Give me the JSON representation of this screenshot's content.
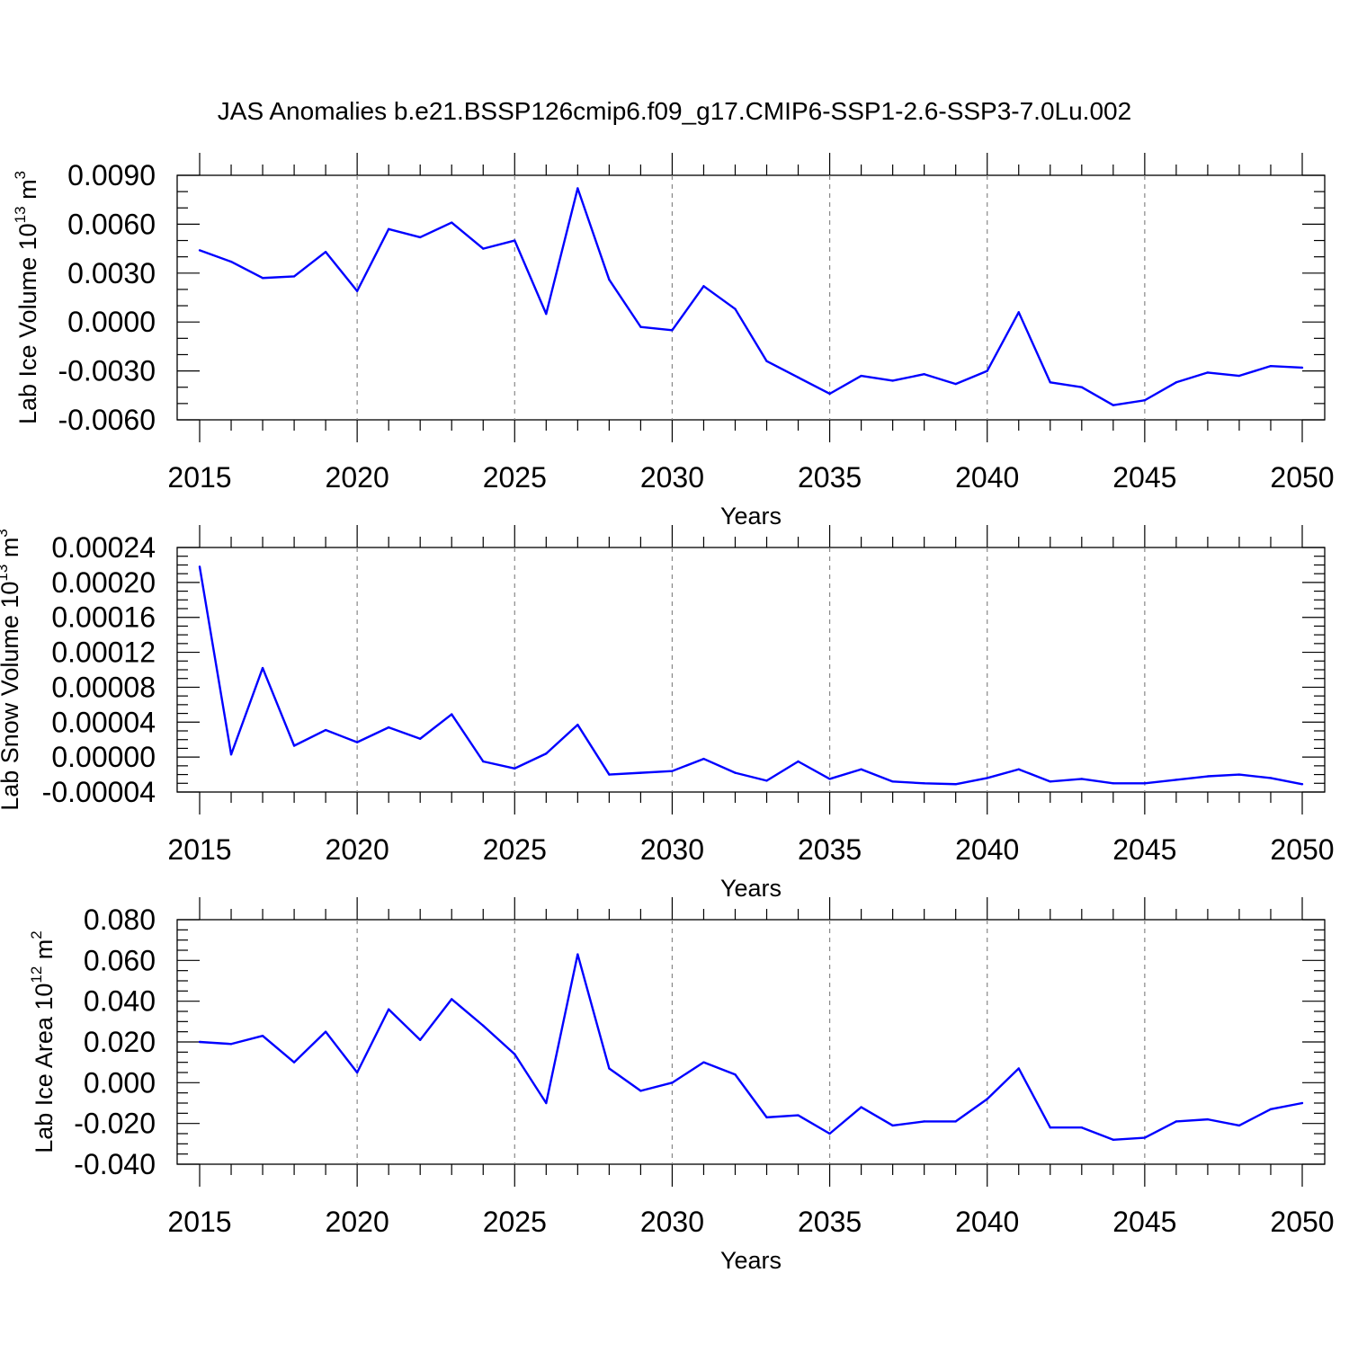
{
  "title": "JAS Anomalies b.e21.BSSP126cmip6.f09_g17.CMIP6-SSP1-2.6-SSP3-7.0Lu.002",
  "colors": {
    "series": "#0000ff",
    "axes": "#000000",
    "gridline": "#888888"
  },
  "chart_data": [
    {
      "type": "line",
      "title": "",
      "xlabel": "Years",
      "ylabel": {
        "base": "Lab Ice Volume 10",
        "exp": "13",
        "unit": " m",
        "unit_exp": "3"
      },
      "xlim": [
        2015,
        2050
      ],
      "ylim": [
        -0.006,
        0.009
      ],
      "x_ticks": [
        2015,
        2020,
        2025,
        2030,
        2035,
        2040,
        2045,
        2050
      ],
      "x_tick_labels": [
        "2015",
        "2020",
        "2025",
        "2030",
        "2035",
        "2040",
        "2045",
        "2050"
      ],
      "y_ticks": [
        -0.006,
        -0.003,
        0.0,
        0.003,
        0.006,
        0.009
      ],
      "y_tick_labels": [
        "-0.0060",
        "-0.0030",
        "0.0000",
        "0.0030",
        "0.0060",
        "0.0090"
      ],
      "x_minor_step": 1,
      "y_minor_step": 0.001,
      "grid": "vertical dashed at major x ticks",
      "x": [
        2015,
        2016,
        2017,
        2018,
        2019,
        2020,
        2021,
        2022,
        2023,
        2024,
        2025,
        2026,
        2027,
        2028,
        2029,
        2030,
        2031,
        2032,
        2033,
        2034,
        2035,
        2036,
        2037,
        2038,
        2039,
        2040,
        2041,
        2042,
        2043,
        2044,
        2045,
        2046,
        2047,
        2048,
        2049,
        2050
      ],
      "values": [
        0.0044,
        0.0037,
        0.0027,
        0.0028,
        0.0043,
        0.0019,
        0.0057,
        0.0052,
        0.0061,
        0.0045,
        0.005,
        0.0005,
        0.0082,
        0.0026,
        -0.0003,
        -0.0005,
        0.0022,
        0.0008,
        -0.0024,
        -0.0034,
        -0.0044,
        -0.0033,
        -0.0036,
        -0.0032,
        -0.0038,
        -0.003,
        0.0006,
        -0.0037,
        -0.004,
        -0.0051,
        -0.0048,
        -0.0037,
        -0.0031,
        -0.0033,
        -0.0027,
        -0.0028
      ]
    },
    {
      "type": "line",
      "title": "",
      "xlabel": "Years",
      "ylabel": {
        "base": "Lab Snow Volume 10",
        "exp": "13",
        "unit": " m",
        "unit_exp": "3"
      },
      "xlim": [
        2015,
        2050
      ],
      "ylim": [
        -4e-05,
        0.00024
      ],
      "x_ticks": [
        2015,
        2020,
        2025,
        2030,
        2035,
        2040,
        2045,
        2050
      ],
      "x_tick_labels": [
        "2015",
        "2020",
        "2025",
        "2030",
        "2035",
        "2040",
        "2045",
        "2050"
      ],
      "y_ticks": [
        -4e-05,
        0.0,
        4e-05,
        8e-05,
        0.00012,
        0.00016,
        0.0002,
        0.00024
      ],
      "y_tick_labels": [
        "-0.00004",
        "0.00000",
        "0.00004",
        "0.00008",
        "0.00012",
        "0.00016",
        "0.00020",
        "0.00024"
      ],
      "x_minor_step": 1,
      "y_minor_step": 1e-05,
      "grid": "vertical dashed at major x ticks",
      "x": [
        2015,
        2016,
        2017,
        2018,
        2019,
        2020,
        2021,
        2022,
        2023,
        2024,
        2025,
        2026,
        2027,
        2028,
        2029,
        2030,
        2031,
        2032,
        2033,
        2034,
        2035,
        2036,
        2037,
        2038,
        2039,
        2040,
        2041,
        2042,
        2043,
        2044,
        2045,
        2046,
        2047,
        2048,
        2049,
        2050
      ],
      "values": [
        0.000218,
        3e-06,
        0.000102,
        1.3e-05,
        3.1e-05,
        1.7e-05,
        3.4e-05,
        2.1e-05,
        4.9e-05,
        -5e-06,
        -1.3e-05,
        4e-06,
        3.7e-05,
        -2e-05,
        -1.8e-05,
        -1.6e-05,
        -2e-06,
        -1.8e-05,
        -2.7e-05,
        -5e-06,
        -2.5e-05,
        -1.4e-05,
        -2.8e-05,
        -3e-05,
        -3.1e-05,
        -2.4e-05,
        -1.4e-05,
        -2.8e-05,
        -2.5e-05,
        -3e-05,
        -3e-05,
        -2.6e-05,
        -2.2e-05,
        -2e-05,
        -2.4e-05,
        -3.1e-05
      ]
    },
    {
      "type": "line",
      "title": "",
      "xlabel": "Years",
      "ylabel": {
        "base": "Lab Ice Area 10",
        "exp": "12",
        "unit": " m",
        "unit_exp": "2"
      },
      "xlim": [
        2015,
        2050
      ],
      "ylim": [
        -0.04,
        0.08
      ],
      "x_ticks": [
        2015,
        2020,
        2025,
        2030,
        2035,
        2040,
        2045,
        2050
      ],
      "x_tick_labels": [
        "2015",
        "2020",
        "2025",
        "2030",
        "2035",
        "2040",
        "2045",
        "2050"
      ],
      "y_ticks": [
        -0.04,
        -0.02,
        0.0,
        0.02,
        0.04,
        0.06,
        0.08
      ],
      "y_tick_labels": [
        "-0.040",
        "-0.020",
        "0.000",
        "0.020",
        "0.040",
        "0.060",
        "0.080"
      ],
      "x_minor_step": 1,
      "y_minor_step": 0.005,
      "grid": "vertical dashed at major x ticks",
      "x": [
        2015,
        2016,
        2017,
        2018,
        2019,
        2020,
        2021,
        2022,
        2023,
        2024,
        2025,
        2026,
        2027,
        2028,
        2029,
        2030,
        2031,
        2032,
        2033,
        2034,
        2035,
        2036,
        2037,
        2038,
        2039,
        2040,
        2041,
        2042,
        2043,
        2044,
        2045,
        2046,
        2047,
        2048,
        2049,
        2050
      ],
      "values": [
        0.02,
        0.019,
        0.023,
        0.01,
        0.025,
        0.005,
        0.036,
        0.021,
        0.041,
        0.028,
        0.014,
        -0.01,
        0.063,
        0.007,
        -0.004,
        0.0,
        0.01,
        0.004,
        -0.017,
        -0.016,
        -0.025,
        -0.012,
        -0.021,
        -0.019,
        -0.019,
        -0.008,
        0.007,
        -0.022,
        -0.022,
        -0.028,
        -0.027,
        -0.019,
        -0.018,
        -0.021,
        -0.013,
        -0.01
      ]
    }
  ]
}
